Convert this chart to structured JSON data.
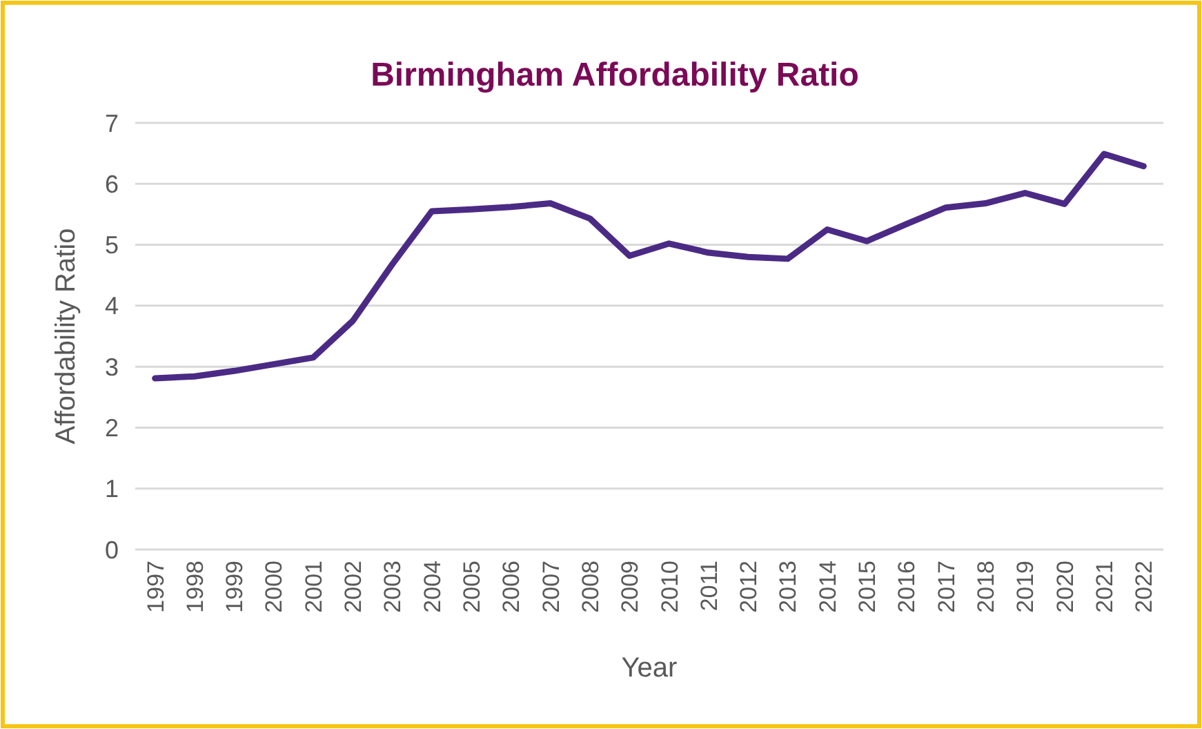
{
  "chart_data": {
    "type": "line",
    "title": "Birmingham Affordability Ratio",
    "xlabel": "Year",
    "ylabel": "Affordability Ratio",
    "categories": [
      "1997",
      "1998",
      "1999",
      "2000",
      "2001",
      "2002",
      "2003",
      "2004",
      "2005",
      "2006",
      "2007",
      "2008",
      "2009",
      "2010",
      "2011",
      "2012",
      "2013",
      "2014",
      "2015",
      "2016",
      "2017",
      "2018",
      "2019",
      "2020",
      "2021",
      "2022"
    ],
    "series": [
      {
        "color": "#4b2a85",
        "values": [
          2.81,
          2.84,
          2.93,
          3.04,
          3.15,
          3.75,
          4.68,
          5.55,
          5.58,
          5.62,
          5.68,
          5.43,
          4.82,
          5.02,
          4.87,
          4.8,
          4.77,
          5.25,
          5.06,
          5.34,
          5.61,
          5.68,
          5.85,
          5.67,
          6.49,
          6.29
        ]
      }
    ],
    "ylim": [
      0,
      7
    ],
    "yticks": [
      0,
      1,
      2,
      3,
      4,
      5,
      6,
      7
    ],
    "grid": "y",
    "marker": "none",
    "line_style": "solid"
  }
}
